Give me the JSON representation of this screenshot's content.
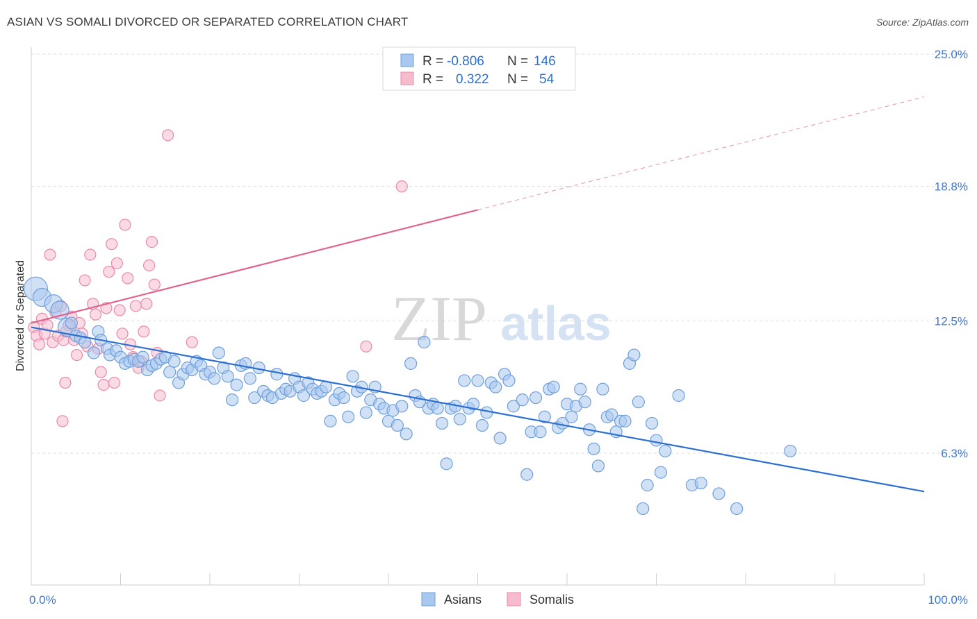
{
  "title": "ASIAN VS SOMALI DIVORCED OR SEPARATED CORRELATION CHART",
  "source": "Source: ZipAtlas.com",
  "watermark": {
    "zip": "ZIP",
    "atlas": "atlas"
  },
  "colors": {
    "asians_fill": "#a9c8ef",
    "asians_stroke": "#6f9fdc",
    "asians_line": "#2b6fd1",
    "somalis_fill": "#f6bccd",
    "somalis_stroke": "#e98aa8",
    "somalis_line": "#e0648e",
    "grid": "#dedede",
    "axis_label": "#3b78d0",
    "text": "#333333"
  },
  "legend_top": [
    {
      "r_label": "R =",
      "r_value": "-0.806",
      "n_label": "N =",
      "n_value": "146",
      "series": "asians"
    },
    {
      "r_label": "R =",
      "r_value": "0.322",
      "n_label": "N =",
      "n_value": "54",
      "series": "somalis"
    }
  ],
  "legend_bottom": [
    {
      "label": "Asians",
      "series": "asians"
    },
    {
      "label": "Somalis",
      "series": "somalis"
    }
  ],
  "chart_data": {
    "type": "scatter",
    "title": "ASIAN VS SOMALI DIVORCED OR SEPARATED CORRELATION CHART",
    "xlabel": "",
    "ylabel": "Divorced or Separated",
    "x_unit": "%",
    "xlim": [
      0,
      100
    ],
    "ylim": [
      0,
      26.0
    ],
    "x_tick_labels": [
      "0.0%",
      "100.0%"
    ],
    "y_ticks": [
      6.3,
      12.5,
      18.8,
      25.0
    ],
    "y_tick_labels": [
      "6.3%",
      "12.5%",
      "18.8%",
      "25.0%"
    ],
    "grid": true,
    "legend_position": "top-center",
    "series": [
      {
        "name": "Asians",
        "r": -0.806,
        "n": 146,
        "trend": {
          "x0": 0,
          "y0": 12.2,
          "x1": 100,
          "y1": 4.5
        },
        "points": [
          [
            0.5,
            14.0
          ],
          [
            1.2,
            13.6
          ],
          [
            2.5,
            13.3
          ],
          [
            3.2,
            13.0
          ],
          [
            4.0,
            12.2
          ],
          [
            4.5,
            12.4
          ],
          [
            5.0,
            11.8
          ],
          [
            5.5,
            11.7
          ],
          [
            6.0,
            11.5
          ],
          [
            7.0,
            11.0
          ],
          [
            7.5,
            12.0
          ],
          [
            7.8,
            11.6
          ],
          [
            8.5,
            11.2
          ],
          [
            8.8,
            10.9
          ],
          [
            9.5,
            11.1
          ],
          [
            10.0,
            10.8
          ],
          [
            10.5,
            10.5
          ],
          [
            11.0,
            10.6
          ],
          [
            11.5,
            10.7
          ],
          [
            12.0,
            10.6
          ],
          [
            12.5,
            10.8
          ],
          [
            13.0,
            10.2
          ],
          [
            13.5,
            10.4
          ],
          [
            14.0,
            10.5
          ],
          [
            14.5,
            10.7
          ],
          [
            15.0,
            10.8
          ],
          [
            15.5,
            10.1
          ],
          [
            16.0,
            10.6
          ],
          [
            16.5,
            9.6
          ],
          [
            17.0,
            10.0
          ],
          [
            17.5,
            10.3
          ],
          [
            18.0,
            10.2
          ],
          [
            18.5,
            10.6
          ],
          [
            19.0,
            10.4
          ],
          [
            19.5,
            10.0
          ],
          [
            20.0,
            10.1
          ],
          [
            20.5,
            9.8
          ],
          [
            21.0,
            11.0
          ],
          [
            21.5,
            10.3
          ],
          [
            22.0,
            9.9
          ],
          [
            22.5,
            8.8
          ],
          [
            23.0,
            9.5
          ],
          [
            23.5,
            10.4
          ],
          [
            24.0,
            10.5
          ],
          [
            24.5,
            9.8
          ],
          [
            25.0,
            8.9
          ],
          [
            25.5,
            10.3
          ],
          [
            26.0,
            9.2
          ],
          [
            26.5,
            9.0
          ],
          [
            27.0,
            8.9
          ],
          [
            27.5,
            10.0
          ],
          [
            28.0,
            9.1
          ],
          [
            28.5,
            9.3
          ],
          [
            29.0,
            9.2
          ],
          [
            29.5,
            9.8
          ],
          [
            30.0,
            9.4
          ],
          [
            30.5,
            9.0
          ],
          [
            31.0,
            9.6
          ],
          [
            31.5,
            9.3
          ],
          [
            32.0,
            9.1
          ],
          [
            32.5,
            9.2
          ],
          [
            33.0,
            9.4
          ],
          [
            33.5,
            7.8
          ],
          [
            34.0,
            8.8
          ],
          [
            34.5,
            9.1
          ],
          [
            35.0,
            8.9
          ],
          [
            35.5,
            8.0
          ],
          [
            36.0,
            9.9
          ],
          [
            36.5,
            9.2
          ],
          [
            37.0,
            9.4
          ],
          [
            37.5,
            8.2
          ],
          [
            38.0,
            8.8
          ],
          [
            38.5,
            9.4
          ],
          [
            39.0,
            8.6
          ],
          [
            39.5,
            8.4
          ],
          [
            40.0,
            7.8
          ],
          [
            40.5,
            8.3
          ],
          [
            41.0,
            7.6
          ],
          [
            41.5,
            8.5
          ],
          [
            42.0,
            7.2
          ],
          [
            42.5,
            10.5
          ],
          [
            43.0,
            9.0
          ],
          [
            43.5,
            8.7
          ],
          [
            44.0,
            11.5
          ],
          [
            44.5,
            8.4
          ],
          [
            45.0,
            8.6
          ],
          [
            45.5,
            8.4
          ],
          [
            46.0,
            7.7
          ],
          [
            46.5,
            5.8
          ],
          [
            47.0,
            8.4
          ],
          [
            47.5,
            8.5
          ],
          [
            48.0,
            7.9
          ],
          [
            48.5,
            9.7
          ],
          [
            49.0,
            8.4
          ],
          [
            49.5,
            8.6
          ],
          [
            50.0,
            9.7
          ],
          [
            50.5,
            7.6
          ],
          [
            51.0,
            8.2
          ],
          [
            51.5,
            9.6
          ],
          [
            52.0,
            9.4
          ],
          [
            52.5,
            7.0
          ],
          [
            53.0,
            10.0
          ],
          [
            53.5,
            9.7
          ],
          [
            54.0,
            8.5
          ],
          [
            55.0,
            8.8
          ],
          [
            55.5,
            5.3
          ],
          [
            56.0,
            7.3
          ],
          [
            56.5,
            8.9
          ],
          [
            57.0,
            7.3
          ],
          [
            57.5,
            8.0
          ],
          [
            58.0,
            9.3
          ],
          [
            58.5,
            9.4
          ],
          [
            59.0,
            7.5
          ],
          [
            59.5,
            7.7
          ],
          [
            60.0,
            8.6
          ],
          [
            60.5,
            8.0
          ],
          [
            61.0,
            8.5
          ],
          [
            61.5,
            9.3
          ],
          [
            62.0,
            8.7
          ],
          [
            62.5,
            7.4
          ],
          [
            63.0,
            6.5
          ],
          [
            63.5,
            5.7
          ],
          [
            64.0,
            9.3
          ],
          [
            64.5,
            8.0
          ],
          [
            65.0,
            8.1
          ],
          [
            65.5,
            7.3
          ],
          [
            66.0,
            7.8
          ],
          [
            66.5,
            7.8
          ],
          [
            67.0,
            10.5
          ],
          [
            67.5,
            10.9
          ],
          [
            68.0,
            8.7
          ],
          [
            68.5,
            3.7
          ],
          [
            69.0,
            4.8
          ],
          [
            69.5,
            7.7
          ],
          [
            70.0,
            6.9
          ],
          [
            70.5,
            5.4
          ],
          [
            71.0,
            6.4
          ],
          [
            72.5,
            9.0
          ],
          [
            74.0,
            4.8
          ],
          [
            75.0,
            4.9
          ],
          [
            77.0,
            4.4
          ],
          [
            79.0,
            3.7
          ],
          [
            85.0,
            6.4
          ]
        ]
      },
      {
        "name": "Somalis",
        "r": 0.322,
        "n": 54,
        "trend": {
          "x0": 0,
          "y0": 12.4,
          "x1": 50,
          "y1": 17.7,
          "x_dash_end": 100,
          "y_dash_end": 23.0
        },
        "points": [
          [
            0.3,
            12.2
          ],
          [
            0.6,
            11.8
          ],
          [
            0.9,
            11.4
          ],
          [
            1.2,
            12.6
          ],
          [
            1.5,
            11.9
          ],
          [
            1.8,
            12.3
          ],
          [
            2.1,
            15.6
          ],
          [
            2.4,
            11.5
          ],
          [
            2.7,
            12.9
          ],
          [
            3.0,
            11.8
          ],
          [
            3.3,
            13.2
          ],
          [
            3.6,
            11.6
          ],
          [
            3.9,
            12.0
          ],
          [
            4.2,
            12.3
          ],
          [
            4.5,
            12.7
          ],
          [
            4.8,
            11.6
          ],
          [
            5.1,
            10.9
          ],
          [
            5.4,
            12.4
          ],
          [
            5.7,
            11.9
          ],
          [
            6.0,
            14.4
          ],
          [
            6.3,
            11.3
          ],
          [
            6.6,
            15.6
          ],
          [
            6.9,
            13.3
          ],
          [
            7.2,
            12.8
          ],
          [
            7.5,
            11.2
          ],
          [
            7.8,
            10.1
          ],
          [
            8.1,
            9.5
          ],
          [
            8.4,
            13.1
          ],
          [
            8.7,
            14.8
          ],
          [
            9.0,
            16.1
          ],
          [
            9.3,
            9.6
          ],
          [
            9.6,
            15.2
          ],
          [
            9.9,
            13.0
          ],
          [
            10.2,
            11.9
          ],
          [
            10.5,
            17.0
          ],
          [
            10.8,
            14.5
          ],
          [
            11.1,
            11.4
          ],
          [
            11.4,
            10.8
          ],
          [
            11.7,
            13.2
          ],
          [
            12.0,
            10.3
          ],
          [
            12.3,
            10.6
          ],
          [
            12.6,
            12.0
          ],
          [
            12.9,
            13.3
          ],
          [
            13.2,
            15.1
          ],
          [
            13.5,
            16.2
          ],
          [
            13.8,
            14.2
          ],
          [
            14.1,
            11.0
          ],
          [
            14.4,
            9.0
          ],
          [
            3.5,
            7.8
          ],
          [
            3.8,
            9.6
          ],
          [
            15.3,
            21.2
          ],
          [
            18.0,
            11.5
          ],
          [
            37.5,
            11.3
          ],
          [
            41.5,
            18.8
          ]
        ]
      }
    ]
  }
}
